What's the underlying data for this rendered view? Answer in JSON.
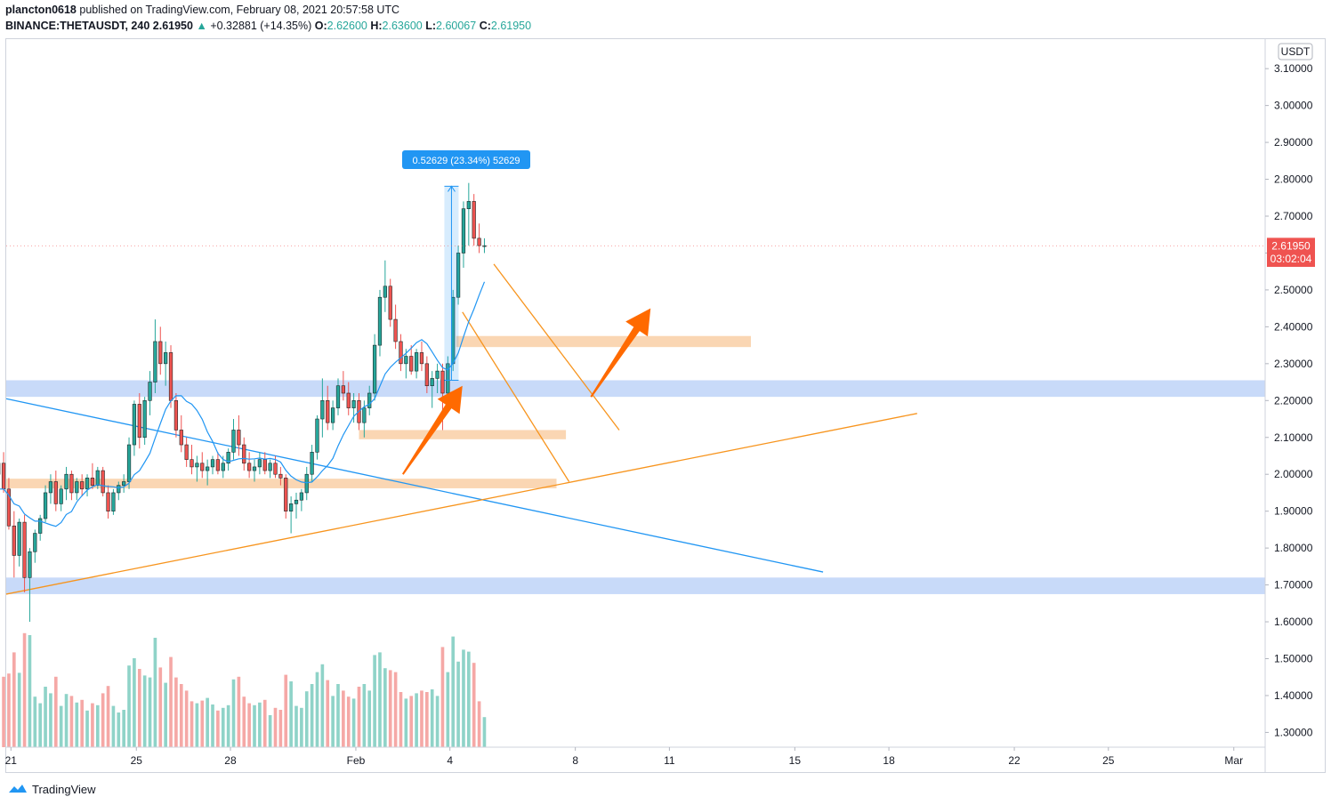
{
  "header": {
    "user": "plancton0618",
    "published_text": "published on TradingView.com, February 08, 2021 20:57:58 UTC",
    "symbol": "BINANCE:THETAUSDT, 240",
    "last": "2.61950",
    "change": "+0.32881 (+14.35%)",
    "o_label": "O:",
    "o_value": "2.62600",
    "h_label": "H:",
    "h_value": "2.63600",
    "l_label": "L:",
    "l_value": "2.60067",
    "c_label": "C:",
    "c_value": "2.61950"
  },
  "price_axis": {
    "currency": "USDT",
    "current_price": "2.61950",
    "countdown": "03:02:04",
    "accent_color": "#ef5350"
  },
  "measure_label": "0.52629 (23.34%) 52629",
  "footer": {
    "brand": "TradingView",
    "icon": "tradingview-cloud-icon"
  },
  "colors": {
    "up": "#26a69a",
    "down": "#ef5350",
    "ma": "#2196f3",
    "zone_blue": "#b6cdf7",
    "zone_orange": "#f9cfa6",
    "trend_orange": "#f7941d",
    "arrow": "#ff6a00"
  },
  "chart_data": {
    "type": "candlestick",
    "symbol": "THETAUSDT",
    "interval": "240",
    "ylim": [
      1.26,
      3.18
    ],
    "y_ticks": [
      "3.10000",
      "3.00000",
      "2.90000",
      "2.80000",
      "2.70000",
      "2.60000",
      "2.50000",
      "2.40000",
      "2.30000",
      "2.20000",
      "2.10000",
      "2.00000",
      "1.90000",
      "1.80000",
      "1.70000",
      "1.60000",
      "1.50000",
      "1.40000",
      "1.30000"
    ],
    "x_ticks": [
      {
        "label": "21",
        "day": 21
      },
      {
        "label": "25",
        "day": 25
      },
      {
        "label": "28",
        "day": 28
      },
      {
        "label": "Feb",
        "day": 32
      },
      {
        "label": "4",
        "day": 35
      },
      {
        "label": "8",
        "day": 39
      },
      {
        "label": "11",
        "day": 42
      },
      {
        "label": "15",
        "day": 46
      },
      {
        "label": "18",
        "day": 49
      },
      {
        "label": "22",
        "day": 53
      },
      {
        "label": "25",
        "day": 56
      },
      {
        "label": "Mar",
        "day": 60
      }
    ],
    "x_range_days": [
      20.85,
      61.0
    ],
    "zones": [
      {
        "kind": "support",
        "color": "blue",
        "from": 2.21,
        "to": 2.255
      },
      {
        "kind": "support",
        "color": "blue",
        "from": 1.675,
        "to": 1.72
      }
    ],
    "orange_zones": [
      {
        "x0": 20.85,
        "x1": 38.4,
        "from": 1.962,
        "to": 1.988
      },
      {
        "x0": 32.1,
        "x1": 38.7,
        "from": 2.095,
        "to": 2.12
      },
      {
        "x0": 35.2,
        "x1": 44.6,
        "from": 2.345,
        "to": 2.375
      }
    ],
    "trendlines": [
      {
        "color": "blue",
        "x0": 20.85,
        "y0": 2.205,
        "x1": 46.9,
        "y1": 1.735
      },
      {
        "color": "orange",
        "x0": 20.85,
        "y0": 1.675,
        "x1": 49.9,
        "y1": 2.165
      },
      {
        "color": "orange",
        "x0": 35.4,
        "y0": 2.44,
        "x1": 38.8,
        "y1": 1.98
      },
      {
        "color": "orange",
        "x0": 36.4,
        "y0": 2.57,
        "x1": 40.4,
        "y1": 2.12
      }
    ],
    "measure": {
      "x": 35.05,
      "from": 2.255,
      "to": 2.781
    },
    "arrows": [
      {
        "x0": 33.5,
        "y0": 2.0,
        "x1": 35.4,
        "y1": 2.24
      },
      {
        "x0": 39.5,
        "y0": 2.21,
        "x1": 41.4,
        "y1": 2.45
      }
    ],
    "candles_note": "4h candles, ~117 bars from Jan 20 to Feb 8",
    "candles": [
      [
        1.96,
        2.03,
        1.88,
        1.93
      ],
      [
        1.93,
        1.98,
        1.84,
        1.88
      ],
      [
        1.88,
        2.01,
        1.86,
        2.0
      ],
      [
        2.0,
        2.05,
        1.97,
        2.03
      ],
      [
        2.03,
        2.06,
        1.95,
        1.96
      ],
      [
        1.96,
        1.99,
        1.85,
        1.86
      ],
      [
        1.86,
        1.9,
        1.72,
        1.78
      ],
      [
        1.78,
        1.88,
        1.75,
        1.87
      ],
      [
        1.87,
        1.89,
        1.68,
        1.72
      ],
      [
        1.72,
        1.8,
        1.6,
        1.79
      ],
      [
        1.79,
        1.85,
        1.76,
        1.84
      ],
      [
        1.84,
        1.89,
        1.82,
        1.88
      ],
      [
        1.88,
        1.97,
        1.87,
        1.95
      ],
      [
        1.95,
        2.0,
        1.92,
        1.98
      ],
      [
        1.98,
        2.01,
        1.9,
        1.92
      ],
      [
        1.92,
        1.97,
        1.9,
        1.96
      ],
      [
        1.96,
        2.02,
        1.93,
        2.0
      ],
      [
        2.0,
        2.01,
        1.93,
        1.95
      ],
      [
        1.95,
        1.99,
        1.93,
        1.98
      ],
      [
        1.98,
        2.0,
        1.94,
        1.96
      ],
      [
        1.96,
        2.0,
        1.94,
        1.99
      ],
      [
        1.99,
        2.03,
        1.96,
        1.97
      ],
      [
        1.97,
        2.02,
        1.96,
        2.01
      ],
      [
        2.01,
        2.02,
        1.94,
        1.95
      ],
      [
        1.95,
        1.97,
        1.88,
        1.9
      ],
      [
        1.9,
        1.96,
        1.89,
        1.95
      ],
      [
        1.95,
        1.98,
        1.93,
        1.97
      ],
      [
        1.97,
        2.0,
        1.95,
        1.98
      ],
      [
        1.98,
        2.1,
        1.96,
        2.08
      ],
      [
        2.08,
        2.2,
        2.05,
        2.19
      ],
      [
        2.19,
        2.22,
        2.07,
        2.1
      ],
      [
        2.1,
        2.21,
        2.08,
        2.2
      ],
      [
        2.2,
        2.28,
        2.16,
        2.25
      ],
      [
        2.25,
        2.42,
        2.22,
        2.36
      ],
      [
        2.36,
        2.4,
        2.27,
        2.3
      ],
      [
        2.3,
        2.36,
        2.24,
        2.33
      ],
      [
        2.33,
        2.35,
        2.18,
        2.2
      ],
      [
        2.2,
        2.22,
        2.1,
        2.12
      ],
      [
        2.12,
        2.16,
        2.06,
        2.08
      ],
      [
        2.08,
        2.1,
        2.02,
        2.04
      ],
      [
        2.04,
        2.08,
        2.0,
        2.02
      ],
      [
        2.02,
        2.05,
        1.98,
        2.03
      ],
      [
        2.03,
        2.06,
        1.99,
        2.01
      ],
      [
        2.01,
        2.04,
        1.97,
        2.02
      ],
      [
        2.02,
        2.05,
        2.0,
        2.04
      ],
      [
        2.04,
        2.06,
        2.0,
        2.01
      ],
      [
        2.01,
        2.05,
        1.99,
        2.03
      ],
      [
        2.03,
        2.07,
        2.01,
        2.06
      ],
      [
        2.06,
        2.15,
        2.04,
        2.12
      ],
      [
        2.12,
        2.16,
        2.05,
        2.08
      ],
      [
        2.08,
        2.1,
        2.01,
        2.03
      ],
      [
        2.03,
        2.06,
        1.99,
        2.01
      ],
      [
        2.01,
        2.04,
        1.98,
        2.02
      ],
      [
        2.02,
        2.06,
        2.0,
        2.04
      ],
      [
        2.04,
        2.06,
        2.0,
        2.01
      ],
      [
        2.01,
        2.04,
        1.99,
        2.03
      ],
      [
        2.03,
        2.05,
        1.99,
        2.0
      ],
      [
        2.0,
        2.02,
        1.97,
        1.99
      ],
      [
        1.99,
        2.0,
        1.88,
        1.9
      ],
      [
        1.9,
        1.94,
        1.84,
        1.92
      ],
      [
        1.92,
        1.95,
        1.88,
        1.93
      ],
      [
        1.93,
        1.96,
        1.9,
        1.95
      ],
      [
        1.95,
        2.02,
        1.93,
        2.0
      ],
      [
        2.0,
        2.08,
        1.98,
        2.06
      ],
      [
        2.06,
        2.16,
        2.04,
        2.15
      ],
      [
        2.15,
        2.26,
        2.1,
        2.2
      ],
      [
        2.2,
        2.24,
        2.12,
        2.14
      ],
      [
        2.14,
        2.2,
        2.12,
        2.18
      ],
      [
        2.18,
        2.26,
        2.16,
        2.24
      ],
      [
        2.24,
        2.28,
        2.2,
        2.22
      ],
      [
        2.22,
        2.25,
        2.16,
        2.18
      ],
      [
        2.18,
        2.22,
        2.14,
        2.2
      ],
      [
        2.2,
        2.22,
        2.12,
        2.14
      ],
      [
        2.14,
        2.2,
        2.1,
        2.18
      ],
      [
        2.18,
        2.24,
        2.16,
        2.22
      ],
      [
        2.22,
        2.38,
        2.2,
        2.35
      ],
      [
        2.35,
        2.5,
        2.32,
        2.48
      ],
      [
        2.48,
        2.58,
        2.44,
        2.51
      ],
      [
        2.51,
        2.53,
        2.4,
        2.42
      ],
      [
        2.42,
        2.46,
        2.34,
        2.36
      ],
      [
        2.36,
        2.38,
        2.28,
        2.3
      ],
      [
        2.3,
        2.34,
        2.26,
        2.32
      ],
      [
        2.32,
        2.35,
        2.27,
        2.28
      ],
      [
        2.28,
        2.34,
        2.26,
        2.33
      ],
      [
        2.33,
        2.36,
        2.28,
        2.3
      ],
      [
        2.3,
        2.32,
        2.22,
        2.24
      ],
      [
        2.24,
        2.28,
        2.18,
        2.26
      ],
      [
        2.26,
        2.3,
        2.22,
        2.28
      ],
      [
        2.28,
        2.3,
        2.12,
        2.22
      ],
      [
        2.22,
        2.32,
        2.2,
        2.3
      ],
      [
        2.3,
        2.5,
        2.28,
        2.48
      ],
      [
        2.48,
        2.62,
        2.46,
        2.6
      ],
      [
        2.6,
        2.74,
        2.56,
        2.72
      ],
      [
        2.72,
        2.79,
        2.62,
        2.74
      ],
      [
        2.74,
        2.76,
        2.62,
        2.64
      ],
      [
        2.64,
        2.68,
        2.6,
        2.62
      ],
      [
        2.62,
        2.64,
        2.6,
        2.62
      ]
    ]
  }
}
